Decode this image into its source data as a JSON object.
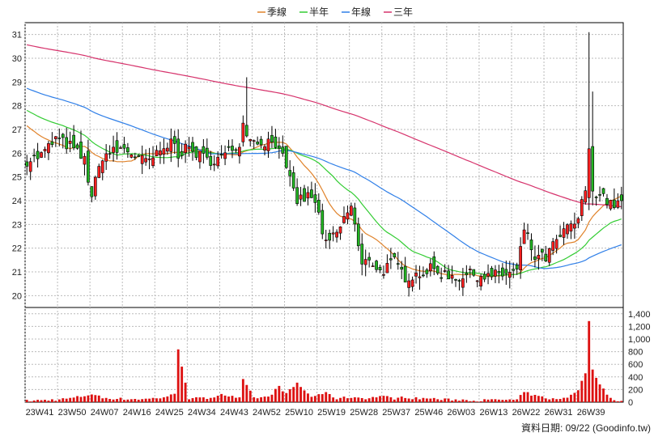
{
  "chart_data": {
    "type": "candlestick",
    "legend": [
      {
        "name": "季線",
        "color": "#e0822a"
      },
      {
        "name": "半年",
        "color": "#33cc33"
      },
      {
        "name": "年線",
        "color": "#2f7fe8"
      },
      {
        "name": "三年",
        "color": "#d6336c"
      }
    ],
    "price_axis": {
      "min": 19.5,
      "max": 31.5,
      "ticks": [
        20,
        21,
        22,
        23,
        24,
        25,
        26,
        27,
        28,
        29,
        30,
        31
      ]
    },
    "volume_axis": {
      "min": 0,
      "max": 1500,
      "ticks": [
        "0",
        "200",
        "400",
        "600",
        "800",
        "1,000",
        "1,200",
        "1,400"
      ]
    },
    "x_ticks": [
      "23W41",
      "23W50",
      "24W07",
      "24W16",
      "24W25",
      "24W34",
      "24W43",
      "24W52",
      "25W10",
      "25W19",
      "25W28",
      "25W37",
      "25W46",
      "26W03",
      "26W13",
      "26W22",
      "26W31",
      "26W39"
    ],
    "candles_per_tick": 9,
    "footer": "資料日期: 09/22 (Goodinfo.tw)",
    "colors": {
      "up": "#ff2020",
      "down": "#22b522",
      "volume": "#dd1111",
      "grid": "#bbbbbb",
      "frame": "#000000"
    },
    "anchors": [
      [
        0,
        25.7,
        20
      ],
      [
        4,
        25.9,
        30
      ],
      [
        8,
        26.6,
        40
      ],
      [
        12,
        26.3,
        60
      ],
      [
        16,
        25.7,
        100
      ],
      [
        18,
        24.2,
        130
      ],
      [
        21,
        25.9,
        70
      ],
      [
        27,
        26.2,
        50
      ],
      [
        33,
        25.6,
        50
      ],
      [
        37,
        26.0,
        70
      ],
      [
        41,
        26.6,
        120
      ],
      [
        42,
        26.0,
        840
      ],
      [
        45,
        26.2,
        60
      ],
      [
        50,
        25.7,
        60
      ],
      [
        54,
        25.8,
        130
      ],
      [
        58,
        26.3,
        70
      ],
      [
        59,
        26.5,
        60
      ],
      [
        60,
        27.2,
        350
      ],
      [
        63,
        26.5,
        70
      ],
      [
        67,
        26.5,
        80
      ],
      [
        70,
        26.4,
        250
      ],
      [
        72,
        25.2,
        130
      ],
      [
        75,
        24.0,
        300
      ],
      [
        79,
        24.2,
        80
      ],
      [
        81,
        23.4,
        130
      ],
      [
        83,
        22.1,
        140
      ],
      [
        86,
        22.6,
        60
      ],
      [
        90,
        23.8,
        80
      ],
      [
        93,
        21.2,
        70
      ],
      [
        95,
        21.6,
        60
      ],
      [
        98,
        21.0,
        100
      ],
      [
        102,
        21.4,
        60
      ],
      [
        105,
        20.8,
        80
      ],
      [
        108,
        20.9,
        60
      ],
      [
        112,
        21.1,
        60
      ],
      [
        116,
        20.9,
        40
      ],
      [
        120,
        20.8,
        40
      ],
      [
        124,
        20.9,
        30
      ],
      [
        128,
        20.8,
        30
      ],
      [
        132,
        20.9,
        40
      ],
      [
        136,
        21.0,
        30
      ],
      [
        138,
        22.8,
        160
      ],
      [
        141,
        21.6,
        100
      ],
      [
        144,
        21.6,
        70
      ],
      [
        147,
        22.3,
        40
      ],
      [
        150,
        22.8,
        80
      ],
      [
        153,
        23.2,
        200
      ],
      [
        155,
        24.5,
        450
      ],
      [
        156,
        26.0,
        1300
      ],
      [
        157,
        24.5,
        500
      ],
      [
        160,
        24.2,
        200
      ],
      [
        162,
        23.8,
        60
      ],
      [
        165,
        24.0,
        20
      ]
    ],
    "ma_start": {
      "季線": 27.3,
      "半年": 27.9,
      "年線": 28.8,
      "三年": 30.6
    }
  }
}
